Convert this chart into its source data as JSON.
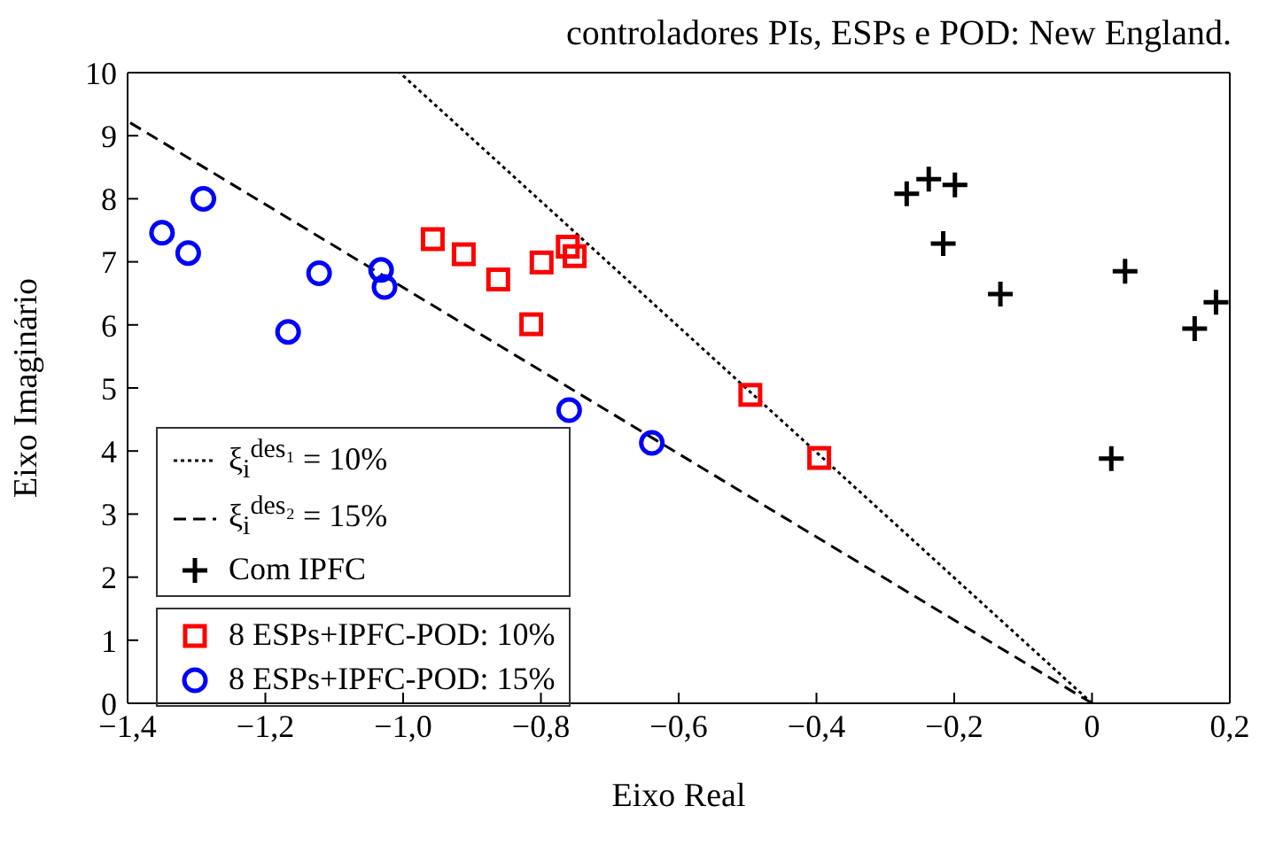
{
  "chart_data": {
    "type": "scatter",
    "title": "controladores PIs, ESPs e POD: New England.",
    "xlabel": "Eixo Real",
    "ylabel": "Eixo Imaginário",
    "xlim": [
      -1.4,
      0.2
    ],
    "ylim": [
      0,
      10
    ],
    "xticks": [
      {
        "value": -1.4,
        "label": "−1,4"
      },
      {
        "value": -1.2,
        "label": "−1,2"
      },
      {
        "value": -1.0,
        "label": "−1,0"
      },
      {
        "value": -0.8,
        "label": "−0,8"
      },
      {
        "value": -0.6,
        "label": "−0,6"
      },
      {
        "value": -0.4,
        "label": "−0,4"
      },
      {
        "value": -0.2,
        "label": "−0,2"
      },
      {
        "value": 0,
        "label": "0"
      },
      {
        "value": 0.2,
        "label": "0,2"
      }
    ],
    "yticks": [
      0,
      1,
      2,
      3,
      4,
      5,
      6,
      7,
      8,
      9,
      10
    ],
    "grid": false,
    "legend": "bottom left",
    "series": [
      {
        "name": "ξ$_{i}$$^{des₁}$ = 10%",
        "type": "line",
        "color": "#000000",
        "line_style": "dotted",
        "marker": "none",
        "x": [
          0,
          -1.005
        ],
        "values": [
          0,
          10
        ]
      },
      {
        "name": "ξ$_{i}$$^{des₂}$ = 15%",
        "type": "line",
        "color": "#000000",
        "line_style": "dashed",
        "marker": "none",
        "x": [
          0,
          -1.4
        ],
        "values": [
          0,
          9.23
        ]
      },
      {
        "name": "Com IPFC",
        "color": "#000000",
        "marker": "cross",
        "x": [
          -0.269,
          -0.237,
          -0.199,
          -0.216,
          -0.133,
          0.048,
          0.149,
          0.18,
          0.028
        ],
        "values": [
          8.08,
          8.31,
          8.22,
          7.29,
          6.49,
          6.85,
          5.94,
          6.36,
          3.88
        ]
      },
      {
        "name": "8 ESPs+IPFC-POD: 10%",
        "color": "#ff0000",
        "marker": "square",
        "x": [
          -0.957,
          -0.912,
          -0.862,
          -0.814,
          -0.799,
          -0.761,
          -0.751,
          -0.496,
          -0.396
        ],
        "values": [
          7.36,
          7.12,
          6.72,
          6.01,
          6.99,
          7.24,
          7.09,
          4.89,
          3.89
        ]
      },
      {
        "name": "8 ESPs+IPFC-POD: 15%",
        "color": "#0000ff",
        "marker": "circle",
        "x": [
          -1.35,
          -1.312,
          -1.29,
          -1.122,
          -1.167,
          -1.032,
          -1.027,
          -0.759,
          -0.639
        ],
        "values": [
          7.46,
          7.14,
          8.0,
          6.82,
          5.89,
          6.87,
          6.6,
          4.65,
          4.13
        ]
      }
    ]
  }
}
